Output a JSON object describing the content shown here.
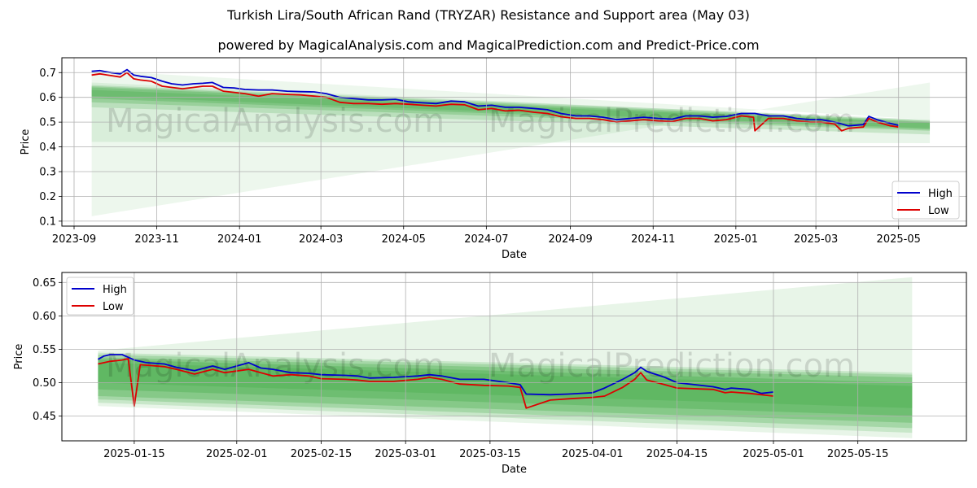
{
  "title": "Turkish Lira/South African Rand (TRYZAR) Resistance and Support area (May 03)",
  "subtitle": "powered by MagicalAnalysis.com and MagicalPrediction.com and Predict-Price.com",
  "watermarks": [
    "MagicalAnalysis.com",
    "MagicalPrediction.com"
  ],
  "colors": {
    "high": "#0000cc",
    "low": "#dd0000",
    "band": "#4caf50"
  },
  "chart_data": [
    {
      "type": "line",
      "xlabel": "Date",
      "ylabel": "Price",
      "ylim": [
        0.08,
        0.76
      ],
      "xlim": [
        "2023-08-23",
        "2025-06-20"
      ],
      "x_ticks": [
        "2023-09",
        "2023-11",
        "2024-01",
        "2024-03",
        "2024-05",
        "2024-07",
        "2024-09",
        "2024-11",
        "2025-01",
        "2025-03",
        "2025-05"
      ],
      "y_ticks": [
        0.1,
        0.2,
        0.3,
        0.4,
        0.5,
        0.6,
        0.7
      ],
      "legend": {
        "position": "lower-right",
        "entries": [
          "High",
          "Low"
        ]
      },
      "grid": true,
      "series": [
        {
          "name": "High",
          "x": [
            "2023-09-14",
            "2023-09-20",
            "2023-09-28",
            "2023-10-05",
            "2023-10-10",
            "2023-10-15",
            "2023-10-20",
            "2023-10-28",
            "2023-11-05",
            "2023-11-12",
            "2023-11-20",
            "2023-11-28",
            "2023-12-05",
            "2023-12-12",
            "2023-12-20",
            "2023-12-28",
            "2024-01-05",
            "2024-01-15",
            "2024-01-25",
            "2024-02-05",
            "2024-02-15",
            "2024-02-25",
            "2024-03-05",
            "2024-03-15",
            "2024-03-25",
            "2024-04-05",
            "2024-04-15",
            "2024-04-25",
            "2024-05-05",
            "2024-05-15",
            "2024-05-25",
            "2024-06-05",
            "2024-06-15",
            "2024-06-25",
            "2024-07-05",
            "2024-07-15",
            "2024-07-25",
            "2024-08-05",
            "2024-08-15",
            "2024-08-25",
            "2024-09-05",
            "2024-09-15",
            "2024-09-25",
            "2024-10-05",
            "2024-10-15",
            "2024-10-25",
            "2024-11-05",
            "2024-11-15",
            "2024-11-25",
            "2024-12-05",
            "2024-12-15",
            "2024-12-25",
            "2025-01-05",
            "2025-01-15",
            "2025-01-25",
            "2025-02-05",
            "2025-02-15",
            "2025-02-25",
            "2025-03-05",
            "2025-03-15",
            "2025-03-25",
            "2025-04-05",
            "2025-04-09",
            "2025-04-15",
            "2025-04-25",
            "2025-05-01"
          ],
          "values": [
            0.705,
            0.708,
            0.7,
            0.695,
            0.712,
            0.69,
            0.685,
            0.68,
            0.665,
            0.655,
            0.65,
            0.655,
            0.657,
            0.66,
            0.64,
            0.638,
            0.632,
            0.63,
            0.63,
            0.625,
            0.623,
            0.622,
            0.615,
            0.6,
            0.595,
            0.59,
            0.59,
            0.592,
            0.582,
            0.578,
            0.575,
            0.585,
            0.582,
            0.565,
            0.568,
            0.56,
            0.56,
            0.555,
            0.55,
            0.535,
            0.525,
            0.525,
            0.52,
            0.51,
            0.515,
            0.52,
            0.515,
            0.512,
            0.525,
            0.525,
            0.52,
            0.523,
            0.535,
            0.535,
            0.525,
            0.525,
            0.515,
            0.51,
            0.51,
            0.5,
            0.485,
            0.49,
            0.523,
            0.51,
            0.495,
            0.487
          ]
        },
        {
          "name": "Low",
          "x": [
            "2023-09-14",
            "2023-09-20",
            "2023-09-28",
            "2023-10-05",
            "2023-10-10",
            "2023-10-15",
            "2023-10-20",
            "2023-10-28",
            "2023-11-05",
            "2023-11-12",
            "2023-11-20",
            "2023-11-28",
            "2023-12-05",
            "2023-12-12",
            "2023-12-20",
            "2023-12-28",
            "2024-01-05",
            "2024-01-15",
            "2024-01-25",
            "2024-02-05",
            "2024-02-15",
            "2024-02-25",
            "2024-03-05",
            "2024-03-15",
            "2024-03-25",
            "2024-04-05",
            "2024-04-15",
            "2024-04-25",
            "2024-05-05",
            "2024-05-15",
            "2024-05-25",
            "2024-06-05",
            "2024-06-15",
            "2024-06-25",
            "2024-07-05",
            "2024-07-15",
            "2024-07-25",
            "2024-08-05",
            "2024-08-15",
            "2024-08-25",
            "2024-09-05",
            "2024-09-15",
            "2024-09-25",
            "2024-10-05",
            "2024-10-15",
            "2024-10-25",
            "2024-11-05",
            "2024-11-15",
            "2024-11-25",
            "2024-12-05",
            "2024-12-15",
            "2024-12-25",
            "2025-01-05",
            "2025-01-14",
            "2025-01-15",
            "2025-01-25",
            "2025-02-05",
            "2025-02-15",
            "2025-02-25",
            "2025-03-05",
            "2025-03-15",
            "2025-03-20",
            "2025-03-25",
            "2025-04-05",
            "2025-04-09",
            "2025-04-15",
            "2025-04-25",
            "2025-05-01"
          ],
          "values": [
            0.69,
            0.695,
            0.688,
            0.682,
            0.7,
            0.675,
            0.67,
            0.665,
            0.645,
            0.64,
            0.635,
            0.64,
            0.645,
            0.645,
            0.625,
            0.62,
            0.615,
            0.605,
            0.615,
            0.612,
            0.61,
            0.605,
            0.6,
            0.58,
            0.575,
            0.575,
            0.572,
            0.575,
            0.572,
            0.568,
            0.565,
            0.572,
            0.57,
            0.55,
            0.555,
            0.545,
            0.548,
            0.54,
            0.535,
            0.522,
            0.515,
            0.515,
            0.51,
            0.5,
            0.505,
            0.51,
            0.505,
            0.502,
            0.515,
            0.515,
            0.505,
            0.51,
            0.525,
            0.52,
            0.465,
            0.515,
            0.515,
            0.505,
            0.5,
            0.5,
            0.492,
            0.465,
            0.475,
            0.48,
            0.515,
            0.5,
            0.485,
            0.48
          ]
        }
      ]
    },
    {
      "type": "line",
      "xlabel": "Date",
      "ylabel": "Price",
      "ylim": [
        0.413,
        0.665
      ],
      "xlim": [
        "2025-01-03",
        "2025-06-02"
      ],
      "x_ticks": [
        "2025-01-15",
        "2025-02-01",
        "2025-02-15",
        "2025-03-01",
        "2025-03-15",
        "2025-04-01",
        "2025-04-15",
        "2025-05-01",
        "2025-05-15"
      ],
      "y_ticks": [
        0.45,
        0.5,
        0.55,
        0.6,
        0.65
      ],
      "legend": {
        "position": "upper-left",
        "entries": [
          "High",
          "Low"
        ]
      },
      "grid": true,
      "series": [
        {
          "name": "High",
          "x": [
            "2025-01-09",
            "2025-01-10",
            "2025-01-11",
            "2025-01-13",
            "2025-01-14",
            "2025-01-15",
            "2025-01-17",
            "2025-01-20",
            "2025-01-22",
            "2025-01-25",
            "2025-01-28",
            "2025-01-30",
            "2025-02-03",
            "2025-02-05",
            "2025-02-07",
            "2025-02-10",
            "2025-02-13",
            "2025-02-15",
            "2025-02-19",
            "2025-02-21",
            "2025-02-23",
            "2025-02-27",
            "2025-03-03",
            "2025-03-05",
            "2025-03-07",
            "2025-03-10",
            "2025-03-14",
            "2025-03-18",
            "2025-03-20",
            "2025-03-21",
            "2025-03-25",
            "2025-03-28",
            "2025-04-01",
            "2025-04-03",
            "2025-04-06",
            "2025-04-08",
            "2025-04-09",
            "2025-04-10",
            "2025-04-13",
            "2025-04-15",
            "2025-04-21",
            "2025-04-23",
            "2025-04-24",
            "2025-04-27",
            "2025-04-29",
            "2025-05-01"
          ],
          "values": [
            0.535,
            0.54,
            0.542,
            0.542,
            0.538,
            0.534,
            0.53,
            0.528,
            0.523,
            0.518,
            0.525,
            0.52,
            0.53,
            0.522,
            0.52,
            0.515,
            0.514,
            0.512,
            0.511,
            0.51,
            0.507,
            0.508,
            0.51,
            0.512,
            0.51,
            0.505,
            0.505,
            0.5,
            0.497,
            0.483,
            0.482,
            0.483,
            0.485,
            0.492,
            0.505,
            0.515,
            0.523,
            0.517,
            0.508,
            0.5,
            0.494,
            0.49,
            0.492,
            0.49,
            0.484,
            0.486
          ]
        },
        {
          "name": "Low",
          "x": [
            "2025-01-09",
            "2025-01-10",
            "2025-01-11",
            "2025-01-13",
            "2025-01-14",
            "2025-01-15",
            "2025-01-16",
            "2025-01-20",
            "2025-01-22",
            "2025-01-25",
            "2025-01-28",
            "2025-01-30",
            "2025-02-03",
            "2025-02-05",
            "2025-02-07",
            "2025-02-10",
            "2025-02-13",
            "2025-02-15",
            "2025-02-19",
            "2025-02-21",
            "2025-02-23",
            "2025-02-27",
            "2025-03-03",
            "2025-03-05",
            "2025-03-07",
            "2025-03-10",
            "2025-03-14",
            "2025-03-18",
            "2025-03-20",
            "2025-03-21",
            "2025-03-25",
            "2025-03-28",
            "2025-04-01",
            "2025-04-03",
            "2025-04-06",
            "2025-04-08",
            "2025-04-09",
            "2025-04-10",
            "2025-04-13",
            "2025-04-15",
            "2025-04-21",
            "2025-04-23",
            "2025-04-24",
            "2025-04-27",
            "2025-04-29",
            "2025-05-01"
          ],
          "values": [
            0.528,
            0.53,
            0.532,
            0.534,
            0.536,
            0.465,
            0.527,
            0.524,
            0.52,
            0.513,
            0.52,
            0.515,
            0.52,
            0.515,
            0.51,
            0.512,
            0.51,
            0.506,
            0.505,
            0.504,
            0.502,
            0.502,
            0.505,
            0.508,
            0.505,
            0.498,
            0.496,
            0.495,
            0.493,
            0.462,
            0.474,
            0.476,
            0.478,
            0.48,
            0.493,
            0.505,
            0.515,
            0.504,
            0.497,
            0.492,
            0.49,
            0.485,
            0.486,
            0.484,
            0.482,
            0.48
          ]
        }
      ]
    }
  ]
}
